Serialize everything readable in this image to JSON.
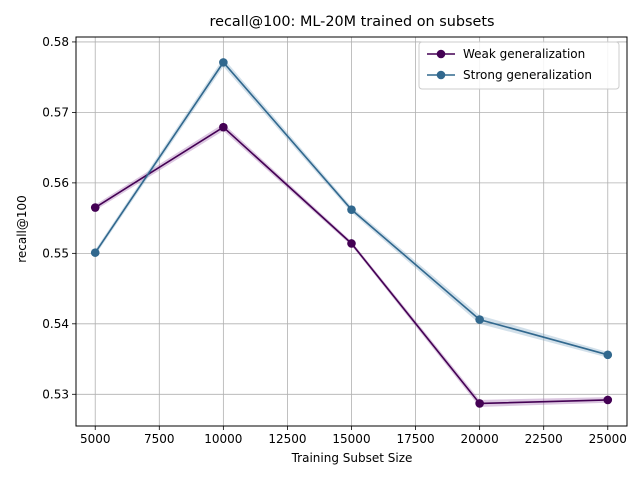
{
  "chart_data": {
    "type": "line",
    "title": "recall@100: ML-20M trained on subsets",
    "xlabel": "Training Subset Size",
    "ylabel": "recall@100",
    "xlim": [
      4250,
      25750
    ],
    "ylim": [
      0.5255,
      0.5807
    ],
    "xticks": [
      5000,
      7500,
      10000,
      12500,
      15000,
      17500,
      20000,
      22500,
      25000
    ],
    "yticks": [
      0.53,
      0.54,
      0.55,
      0.56,
      0.57,
      0.58
    ],
    "grid": true,
    "legend_position": "top-right",
    "x": [
      5000,
      10000,
      15000,
      20000,
      25000
    ],
    "series": [
      {
        "name": "Weak generalization",
        "color": "#440154",
        "band_color": "#9b5fa8",
        "values": [
          0.5565,
          0.5679,
          0.5514,
          0.5287,
          0.5292
        ],
        "band": [
          0.0004,
          0.0005,
          0.0003,
          0.0005,
          0.0004
        ]
      },
      {
        "name": "Strong generalization",
        "color": "#31688e",
        "band_color": "#7fa6c4",
        "values": [
          0.5501,
          0.5771,
          0.5562,
          0.5406,
          0.5356
        ],
        "band": [
          0.0004,
          0.0006,
          0.0004,
          0.0006,
          0.0004
        ]
      }
    ]
  }
}
